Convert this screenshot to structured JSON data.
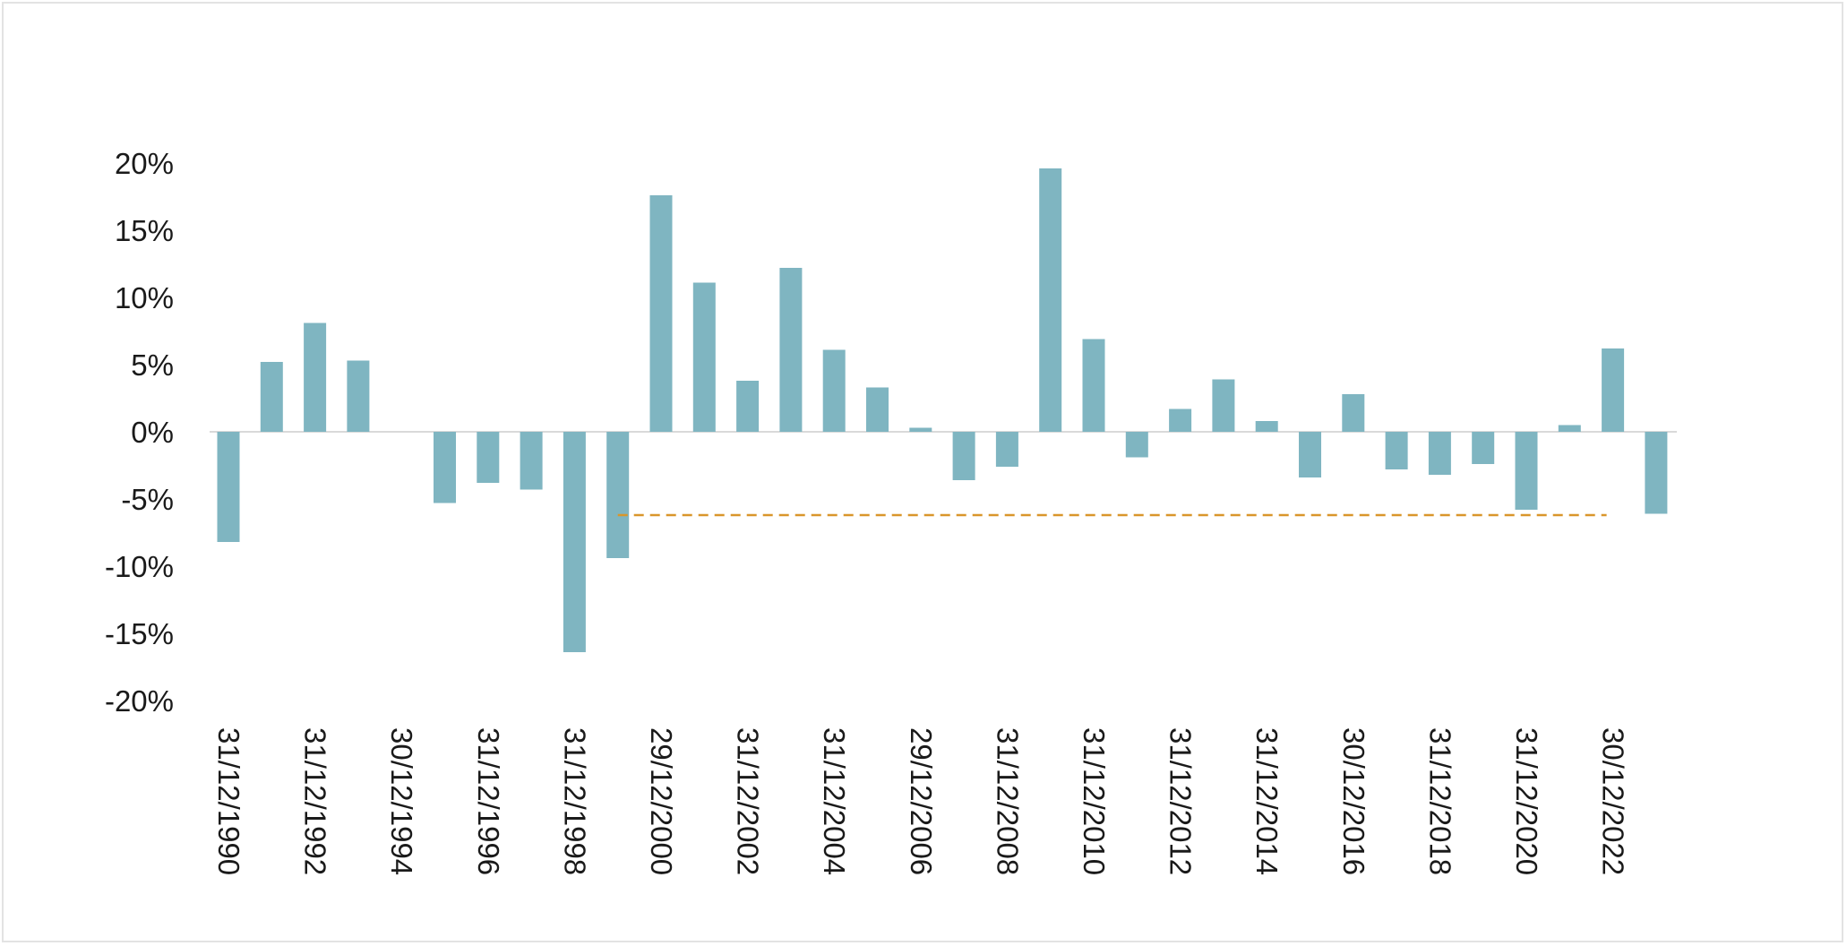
{
  "chart_data": {
    "type": "bar",
    "title": "",
    "xlabel": "",
    "ylabel": "",
    "ylim": [
      -0.2,
      0.2
    ],
    "yticks": [
      0.2,
      0.15,
      0.1,
      0.05,
      0,
      -0.05,
      -0.1,
      -0.15,
      -0.2
    ],
    "ytick_labels": [
      "20%",
      "15%",
      "10%",
      "5%",
      "0%",
      "-5%",
      "-10%",
      "-15%",
      "-20%"
    ],
    "x_tick_labels": [
      "31/12/1990",
      "31/12/1992",
      "30/12/1994",
      "31/12/1996",
      "31/12/1998",
      "29/12/2000",
      "31/12/2002",
      "31/12/2004",
      "29/12/2006",
      "31/12/2008",
      "31/12/2010",
      "31/12/2012",
      "31/12/2014",
      "30/12/2016",
      "31/12/2018",
      "31/12/2020",
      "30/12/2022"
    ],
    "grid": false,
    "bar_color": "#7fb5c1",
    "series": [
      {
        "values": [
          -0.082,
          0.052,
          0.081,
          0.053,
          0.0,
          -0.053,
          -0.038,
          -0.043,
          -0.164,
          -0.094,
          0.176,
          0.111,
          0.038,
          0.122,
          0.061,
          0.033,
          0.003,
          -0.036,
          -0.026,
          0.196,
          0.069,
          -0.019,
          0.017,
          0.039,
          0.008,
          -0.034,
          0.028,
          -0.028,
          -0.032,
          -0.024,
          -0.058,
          0.005,
          0.062,
          -0.061
        ]
      }
    ],
    "reference_line": {
      "value": -0.062,
      "style": "dashed",
      "color": "#d9962b",
      "from_index": 9,
      "to_index": 32
    }
  }
}
